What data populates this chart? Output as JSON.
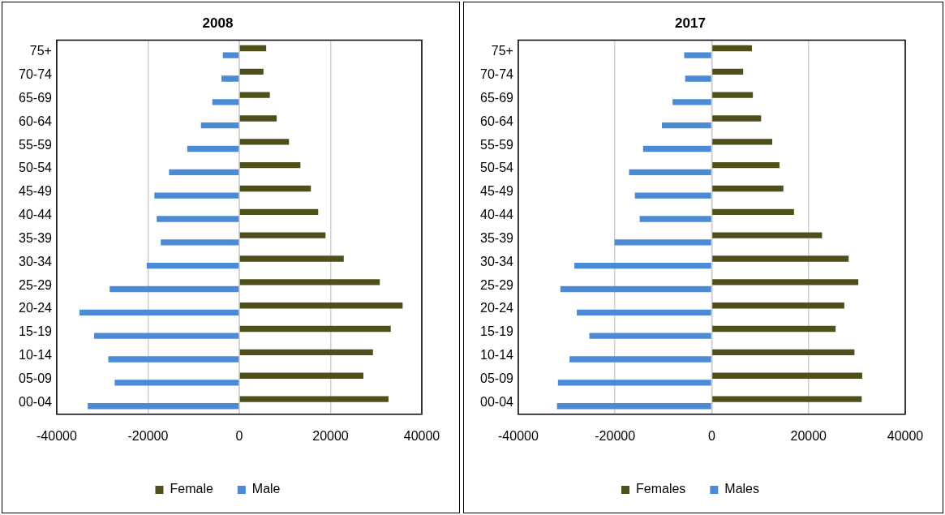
{
  "chart_data": [
    {
      "type": "bar",
      "orientation": "horizontal",
      "title": "2008",
      "categories": [
        "75+",
        "70-74",
        "65-69",
        "60-64",
        "55-59",
        "50-54",
        "45-49",
        "40-44",
        "35-39",
        "30-34",
        "25-29",
        "20-24",
        "15-19",
        "10-14",
        "05-09",
        "00-04"
      ],
      "series": [
        {
          "name": "Female",
          "color": "#4f4f1c",
          "values": [
            5900,
            5300,
            6700,
            8200,
            10900,
            13400,
            15700,
            17300,
            18900,
            22900,
            30800,
            35800,
            33200,
            29300,
            27200,
            32700
          ]
        },
        {
          "name": "Male",
          "color": "#4a8ad6",
          "values": [
            -3600,
            -3900,
            -5900,
            -8400,
            -11400,
            -15400,
            -18600,
            -18100,
            -17200,
            -20300,
            -28400,
            -35000,
            -31800,
            -28700,
            -27300,
            -33200
          ]
        }
      ],
      "xlim": [
        -40000,
        40000
      ],
      "xticks": [
        -40000,
        -20000,
        0,
        20000,
        40000
      ],
      "grid": "x",
      "legend": "bottom"
    },
    {
      "type": "bar",
      "orientation": "horizontal",
      "title": "2017",
      "categories": [
        "75+",
        "70-74",
        "65-69",
        "60-64",
        "55-59",
        "50-54",
        "45-49",
        "40-44",
        "35-39",
        "30-34",
        "25-29",
        "20-24",
        "15-19",
        "10-14",
        "05-09",
        "00-04"
      ],
      "series": [
        {
          "name": "Females",
          "color": "#4f4f1c",
          "values": [
            8300,
            6500,
            8500,
            10200,
            12500,
            14000,
            14800,
            17000,
            22800,
            28300,
            30300,
            27400,
            25600,
            29500,
            31100,
            31000
          ]
        },
        {
          "name": "Males",
          "color": "#4a8ad6",
          "values": [
            -5700,
            -5500,
            -8100,
            -10300,
            -14200,
            -17100,
            -15900,
            -14900,
            -20100,
            -28400,
            -31300,
            -27900,
            -25300,
            -29400,
            -31800,
            -32000
          ]
        }
      ],
      "xlim": [
        -40000,
        40000
      ],
      "xticks": [
        -40000,
        -20000,
        0,
        20000,
        40000
      ],
      "grid": "x",
      "legend": "bottom"
    }
  ]
}
